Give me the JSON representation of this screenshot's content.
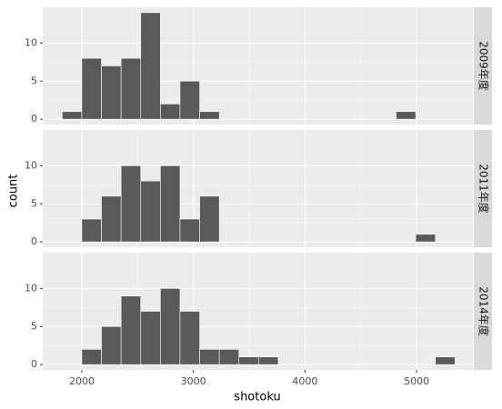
{
  "chart_data": {
    "type": "histogram",
    "x_label": "shotoku",
    "y_label": "count",
    "bins": [
      1824,
      2000,
      2176,
      2352,
      2528,
      2704,
      2880,
      3056,
      3232,
      3408,
      3584,
      3760,
      3936,
      4112,
      4288,
      4464,
      4640,
      4816,
      4992,
      5168,
      5344
    ],
    "color": "#595959",
    "series": [
      {
        "name": "2009年度",
        "values": [
          1,
          8,
          7,
          8,
          14,
          2,
          5,
          1,
          0,
          0,
          0,
          0,
          0,
          0,
          0,
          0,
          0,
          1,
          0,
          0
        ]
      },
      {
        "name": "2011年度",
        "values": [
          0,
          3,
          6,
          10,
          8,
          10,
          3,
          6,
          0,
          0,
          0,
          0,
          0,
          0,
          0,
          0,
          0,
          0,
          1,
          0
        ]
      },
      {
        "name": "2014年度",
        "values": [
          0,
          2,
          5,
          9,
          7,
          10,
          7,
          2,
          2,
          1,
          1,
          0,
          0,
          0,
          0,
          0,
          0,
          0,
          0,
          1
        ]
      }
    ],
    "xlim": [
      1650,
      5504
    ],
    "xticks": [
      2000,
      3000,
      4000,
      5000
    ],
    "ylim": [
      -0.7,
      14.7
    ],
    "yticks": [
      0,
      5,
      10
    ],
    "grid": true
  }
}
